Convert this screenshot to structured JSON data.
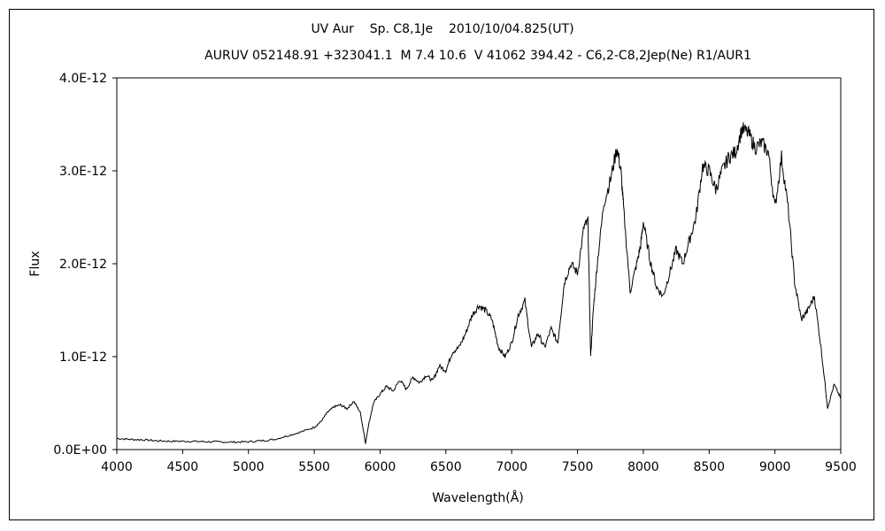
{
  "chart_data": {
    "type": "line",
    "title": "UV Aur    Sp. C8,1Je    2010/10/04.825(UT)",
    "subtitle": "AURUV 052148.91 +323041.1  M 7.4 10.6  V 41062 394.42 - C6,2-C8,2Jep(Ne) R1/AUR1",
    "xlabel": "Wavelength(Å)",
    "ylabel": "Flux",
    "xlim": [
      4000,
      9500
    ],
    "ylim": [
      0,
      4e-12
    ],
    "x_ticks": [
      4000,
      4500,
      5000,
      5500,
      6000,
      6500,
      7000,
      7500,
      8000,
      8500,
      9000,
      9500
    ],
    "x_tick_labels": [
      "4000",
      "4500",
      "5000",
      "5500",
      "6000",
      "6500",
      "7000",
      "7500",
      "8000",
      "8500",
      "9000",
      "9500"
    ],
    "y_ticks": [
      0,
      1e-12,
      2e-12,
      3e-12,
      4e-12
    ],
    "y_tick_labels": [
      "0.0E+00",
      "1.0E-12",
      "2.0E-12",
      "3.0E-12",
      "4.0E-12"
    ],
    "grid": false,
    "series": [
      {
        "line_color": "#000000",
        "x": [
          4000,
          4100,
          4200,
          4300,
          4400,
          4500,
          4600,
          4700,
          4800,
          4900,
          5000,
          5100,
          5200,
          5300,
          5400,
          5500,
          5550,
          5600,
          5650,
          5700,
          5750,
          5800,
          5850,
          5890,
          5910,
          5950,
          6000,
          6050,
          6100,
          6150,
          6200,
          6250,
          6300,
          6350,
          6400,
          6450,
          6500,
          6550,
          6600,
          6650,
          6700,
          6750,
          6800,
          6850,
          6900,
          6950,
          7000,
          7050,
          7100,
          7150,
          7200,
          7250,
          7300,
          7350,
          7400,
          7450,
          7500,
          7550,
          7580,
          7600,
          7620,
          7650,
          7700,
          7750,
          7800,
          7830,
          7850,
          7900,
          7950,
          7980,
          8000,
          8050,
          8100,
          8150,
          8200,
          8250,
          8300,
          8350,
          8400,
          8450,
          8500,
          8550,
          8600,
          8650,
          8700,
          8750,
          8800,
          8850,
          8900,
          8950,
          9000,
          9050,
          9100,
          9150,
          9200,
          9250,
          9300,
          9350,
          9400,
          9450,
          9500
        ],
        "y": [
          1.2e-13,
          1.1e-13,
          1.05e-13,
          9.5e-14,
          9e-14,
          9e-14,
          8.8e-14,
          8.5e-14,
          8.2e-14,
          8e-14,
          8.5e-14,
          9.5e-14,
          1.1e-13,
          1.5e-13,
          1.9e-13,
          2.4e-13,
          3e-13,
          4e-13,
          4.6e-13,
          4.8e-13,
          4.4e-13,
          5.2e-13,
          4e-13,
          7e-14,
          2.5e-13,
          5e-13,
          6e-13,
          6.8e-13,
          6.3e-13,
          7.5e-13,
          6.5e-13,
          7.8e-13,
          7.2e-13,
          8e-13,
          7.4e-13,
          9e-13,
          8.5e-13,
          1.05e-12,
          1.1e-12,
          1.25e-12,
          1.45e-12,
          1.55e-12,
          1.5e-12,
          1.4e-12,
          1.1e-12,
          1e-12,
          1.15e-12,
          1.45e-12,
          1.6e-12,
          1.1e-12,
          1.25e-12,
          1.1e-12,
          1.3e-12,
          1.15e-12,
          1.8e-12,
          2e-12,
          1.9e-12,
          2.4e-12,
          2.45e-12,
          1e-12,
          1.5e-12,
          2e-12,
          2.65e-12,
          2.9e-12,
          3.25e-12,
          3e-12,
          2.6e-12,
          1.7e-12,
          2e-12,
          2.2e-12,
          2.45e-12,
          2.05e-12,
          1.75e-12,
          1.65e-12,
          1.9e-12,
          2.15e-12,
          2e-12,
          2.25e-12,
          2.5e-12,
          3.05e-12,
          3e-12,
          2.8e-12,
          3e-12,
          3.15e-12,
          3.2e-12,
          3.45e-12,
          3.4e-12,
          3.25e-12,
          3.3e-12,
          3.2e-12,
          2.6e-12,
          3.15e-12,
          2.6e-12,
          1.8e-12,
          1.4e-12,
          1.5e-12,
          1.65e-12,
          1.1e-12,
          4.5e-13,
          7e-13,
          5.5e-13
        ]
      }
    ]
  }
}
